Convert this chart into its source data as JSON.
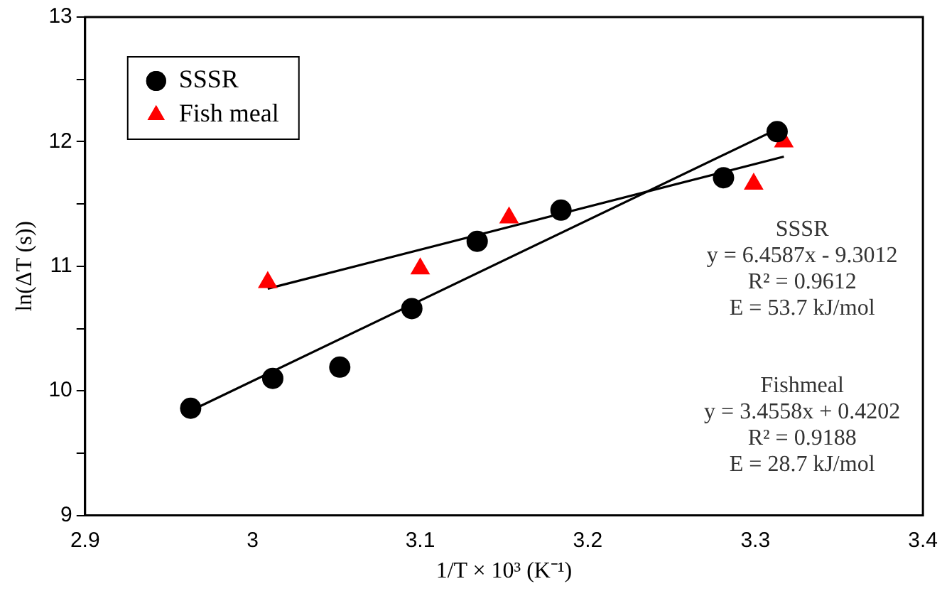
{
  "chart_data": {
    "type": "scatter",
    "xlabel": "1/T × 10³ (K⁻¹)",
    "ylabel": "ln(ΔT (s))",
    "xlim": [
      2.9,
      3.4
    ],
    "xticks": [
      2.9,
      3,
      3.1,
      3.2,
      3.3,
      3.4
    ],
    "ylim": [
      9,
      13
    ],
    "yticks": [
      9,
      {
        "value": 9.5,
        "label": null
      },
      10,
      {
        "value": 10.5,
        "label": null
      },
      11,
      {
        "value": 11.5,
        "label": null
      },
      12,
      {
        "value": 12.5,
        "label": null
      },
      13
    ],
    "grid": false,
    "legend": "top left",
    "series": [
      {
        "name": "SSSR",
        "color": "#000000",
        "marker": "circle",
        "x": [
          2.963,
          3.012,
          3.052,
          3.095,
          3.134,
          3.184,
          3.281,
          3.313
        ],
        "values": [
          9.86,
          10.1,
          10.19,
          10.66,
          11.2,
          11.45,
          11.71,
          12.08
        ]
      },
      {
        "name": "Fish meal",
        "color": "#ff0000",
        "marker": "triangle",
        "x": [
          3.009,
          3.1,
          3.153,
          3.299,
          3.317
        ],
        "values": [
          10.87,
          10.98,
          11.39,
          11.66,
          12.0
        ]
      },
      {
        "type": "line",
        "color": "#000000",
        "marker": "none",
        "x": [
          2.963,
          3.313
        ],
        "values": [
          9.84,
          12.1
        ]
      },
      {
        "type": "line",
        "color": "#000000",
        "marker": "none",
        "x": [
          3.009,
          3.317
        ],
        "values": [
          10.82,
          11.88
        ]
      }
    ],
    "annotations": [
      "SSSR\ny = 6.4587x - 9.3012\nR² = 0.9612\nE = 53.7 kJ/mol",
      "Fishmeal\ny = 3.4558x + 0.4202\nR² = 0.9188\nE = 28.7 kJ/mol"
    ]
  }
}
